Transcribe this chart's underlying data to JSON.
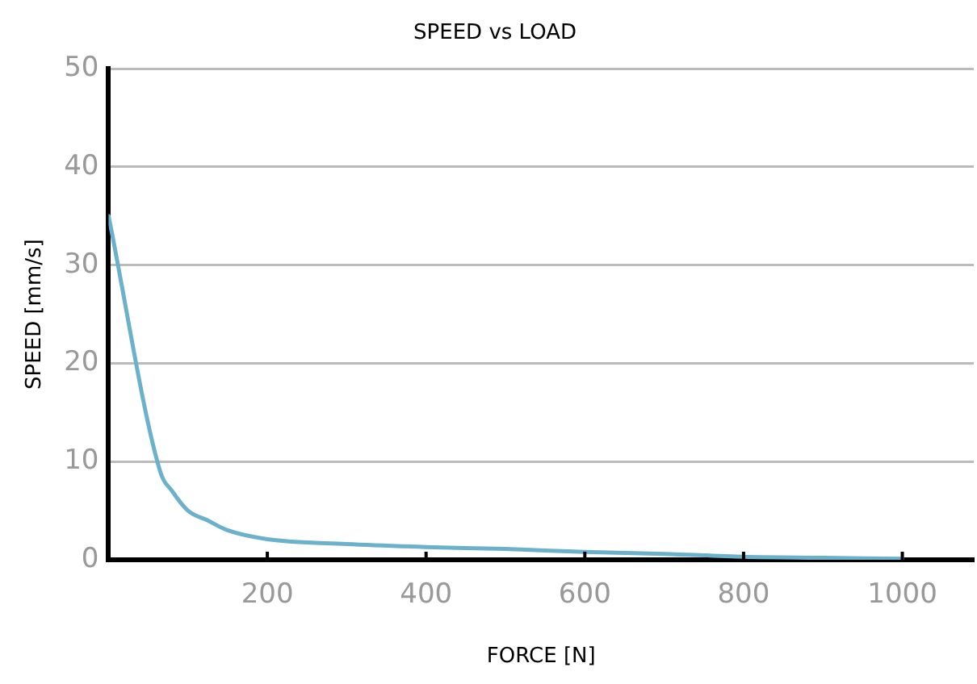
{
  "chart_data": {
    "type": "line",
    "title": "SPEED vs LOAD",
    "xlabel": "FORCE [N]",
    "ylabel": "SPEED [mm/s]",
    "x": [
      0,
      65,
      80,
      100,
      125,
      150,
      200,
      300,
      400,
      500,
      600,
      700,
      800,
      900,
      1000
    ],
    "series": [
      {
        "color": "#6bb1cc",
        "values": [
          35,
          9,
          7,
          5,
          4,
          3,
          2.1,
          1.6,
          1.3,
          1.1,
          0.8,
          0.6,
          0.3,
          0.2,
          0.1
        ]
      }
    ],
    "xlim": [
      0,
      1090
    ],
    "xticks": [
      200,
      400,
      600,
      800,
      1000
    ],
    "ylim": [
      0,
      50
    ],
    "yticks": [
      0,
      10,
      20,
      30,
      40,
      50
    ],
    "grid": "y",
    "legend": false,
    "marker": "none",
    "line_style": "solid"
  }
}
